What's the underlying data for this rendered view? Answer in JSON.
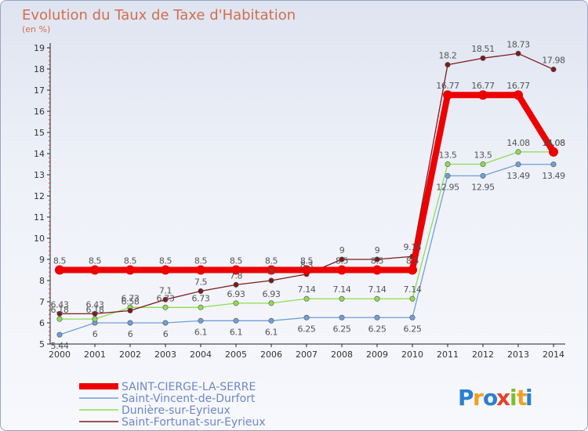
{
  "chart_data": {
    "type": "line",
    "title": "Evolution du Taux de Taxe d'Habitation",
    "subtitle": "(en %)",
    "categories": [
      "2000",
      "2001",
      "2002",
      "2003",
      "2004",
      "2005",
      "2006",
      "2007",
      "2008",
      "2009",
      "2010",
      "2011",
      "2012",
      "2013",
      "2014"
    ],
    "ylim": [
      5,
      19
    ],
    "yticks": [
      5,
      6,
      7,
      8,
      9,
      10,
      11,
      12,
      13,
      14,
      15,
      16,
      17,
      18,
      19
    ],
    "grid": false,
    "legend_position": "bottom-left",
    "series": [
      {
        "name": "SAINT-CIERGE-LA-SERRE",
        "color": "#ee0000",
        "stroke_style": "bold",
        "values": [
          8.5,
          8.5,
          8.5,
          8.5,
          8.5,
          8.5,
          8.5,
          8.5,
          8.5,
          8.5,
          8.5,
          16.77,
          16.77,
          16.77,
          14.08
        ],
        "labels": [
          "8.5",
          "8.5",
          "8.5",
          "8.5",
          "8.5",
          "8.5",
          "8.5",
          "8.5",
          "8.5",
          "8.5",
          "8.5",
          "16.77",
          "16.77",
          "16.77",
          "14.08"
        ]
      },
      {
        "name": "Saint-Vincent-de-Durfort",
        "color": "#6f9fd8",
        "stroke_style": "thin",
        "values": [
          5.44,
          6,
          6,
          6,
          6.1,
          6.1,
          6.1,
          6.25,
          6.25,
          6.25,
          6.25,
          12.95,
          12.95,
          13.49,
          13.49
        ],
        "labels": [
          "5.44",
          "6",
          "6",
          "6",
          "6.1",
          "6.1",
          "6.1",
          "6.25",
          "6.25",
          "6.25",
          "6.25",
          "12.95",
          "12.95",
          "13.49",
          "13.49"
        ]
      },
      {
        "name": "Dunière-sur-Eyrieux",
        "color": "#8fdc52",
        "stroke_style": "thin",
        "values": [
          6.18,
          6.18,
          6.73,
          6.73,
          6.73,
          6.93,
          6.93,
          7.14,
          7.14,
          7.14,
          7.14,
          13.5,
          13.5,
          14.08,
          14.08
        ],
        "labels": [
          "6.18",
          "6.18",
          "6.73",
          "6.73",
          "6.73",
          "6.93",
          "6.93",
          "7.14",
          "7.14",
          "7.14",
          "7.14",
          "13.5",
          "13.5",
          "14.08",
          "14.08"
        ]
      },
      {
        "name": "Saint-Fortunat-sur-Eyrieux",
        "color": "#7a1b1f",
        "stroke_style": "thin",
        "values": [
          6.43,
          6.43,
          6.58,
          7.1,
          7.5,
          7.8,
          8,
          8.3,
          9,
          9,
          9.14,
          18.2,
          18.51,
          18.73,
          17.98
        ],
        "labels": [
          "6.43",
          "6.43",
          "6.58",
          "7.1",
          "7.5",
          "7.8",
          "8",
          "8.3",
          "9",
          "9",
          "9.14",
          "18.2",
          "18.51",
          "18.73",
          "17.98"
        ]
      }
    ]
  },
  "logo": {
    "text": "Proxiti",
    "letters": [
      "P",
      "r",
      "o",
      "x",
      "i",
      "t",
      "i"
    ],
    "colors": [
      "#2a7fd0",
      "#f0a020",
      "#2a7fd0",
      "#e8402a",
      "#7bbf2a",
      "#f0a020",
      "#2a7fd0"
    ]
  }
}
